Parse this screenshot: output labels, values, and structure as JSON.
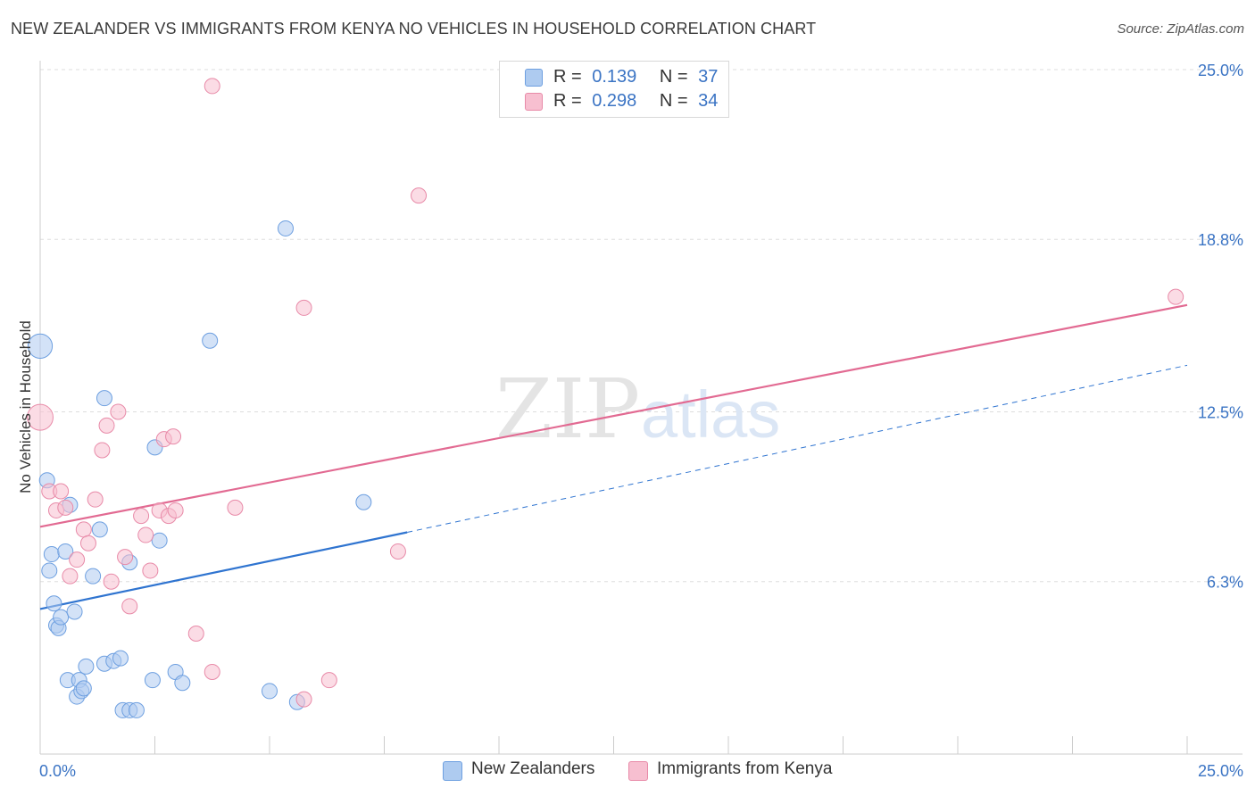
{
  "header": {
    "title": "NEW ZEALANDER VS IMMIGRANTS FROM KENYA NO VEHICLES IN HOUSEHOLD CORRELATION CHART",
    "source": "Source: ZipAtlas.com"
  },
  "watermark": {
    "zip": "ZIP",
    "atlas": "atlas"
  },
  "legend_top": [
    {
      "r_label": "R =",
      "r_value": "0.139",
      "n_label": "N =",
      "n_value": "37"
    },
    {
      "r_label": "R =",
      "r_value": "0.298",
      "n_label": "N =",
      "n_value": "34"
    }
  ],
  "colors": {
    "blue_fill": "#aecbf0",
    "blue_stroke": "#6d9fe0",
    "blue_line": "#2f74d0",
    "pink_fill": "#f7bfd0",
    "pink_stroke": "#e88aa8",
    "pink_line": "#e26a92",
    "tick_label": "#3b74c4",
    "grid": "#dddddd"
  },
  "chart_data": {
    "type": "scatter",
    "title": "NEW ZEALANDER VS IMMIGRANTS FROM KENYA NO VEHICLES IN HOUSEHOLD CORRELATION CHART",
    "xlabel": "",
    "ylabel": "No Vehicles in Household",
    "xlim": [
      0,
      25
    ],
    "ylim": [
      0,
      25
    ],
    "x_tick_labels": [
      "0.0%",
      "25.0%"
    ],
    "y_ticks": [
      6.3,
      12.5,
      18.8,
      25.0
    ],
    "y_tick_labels": [
      "6.3%",
      "12.5%",
      "18.8%",
      "25.0%"
    ],
    "grid": "horizontal dashed",
    "legend": "top-center and bottom",
    "series": [
      {
        "name": "New Zealanders",
        "color": "#aecbf0",
        "points": [
          [
            0.0,
            14.9,
            1.6
          ],
          [
            0.15,
            10.0,
            1
          ],
          [
            0.2,
            6.7,
            1
          ],
          [
            0.25,
            7.3,
            1
          ],
          [
            0.3,
            5.5,
            1
          ],
          [
            0.35,
            4.7,
            1
          ],
          [
            0.4,
            4.6,
            1
          ],
          [
            0.45,
            5.0,
            1
          ],
          [
            0.55,
            7.4,
            1
          ],
          [
            0.6,
            2.7,
            1
          ],
          [
            0.65,
            9.1,
            1
          ],
          [
            0.75,
            5.2,
            1
          ],
          [
            0.8,
            2.1,
            1
          ],
          [
            0.85,
            2.7,
            1
          ],
          [
            0.9,
            2.3,
            1
          ],
          [
            0.95,
            2.4,
            1
          ],
          [
            1.0,
            3.2,
            1
          ],
          [
            1.15,
            6.5,
            1
          ],
          [
            1.3,
            8.2,
            1
          ],
          [
            1.4,
            3.3,
            1
          ],
          [
            1.4,
            13.0,
            1
          ],
          [
            1.6,
            3.4,
            1
          ],
          [
            1.75,
            3.5,
            1
          ],
          [
            1.8,
            1.6,
            1
          ],
          [
            1.95,
            7.0,
            1
          ],
          [
            1.95,
            1.6,
            1
          ],
          [
            2.1,
            1.6,
            1
          ],
          [
            2.45,
            2.7,
            1
          ],
          [
            2.5,
            11.2,
            1
          ],
          [
            2.6,
            7.8,
            1
          ],
          [
            2.95,
            3.0,
            1
          ],
          [
            3.1,
            2.6,
            1
          ],
          [
            3.7,
            15.1,
            1
          ],
          [
            5.0,
            2.3,
            1
          ],
          [
            5.35,
            19.2,
            1
          ],
          [
            5.6,
            1.9,
            1
          ],
          [
            7.05,
            9.2,
            1
          ]
        ]
      },
      {
        "name": "Immigrants from Kenya",
        "color": "#f7bfd0",
        "points": [
          [
            0.0,
            12.3,
            1.7
          ],
          [
            0.2,
            9.6,
            1
          ],
          [
            0.35,
            8.9,
            1
          ],
          [
            0.45,
            9.6,
            1
          ],
          [
            0.55,
            9.0,
            1
          ],
          [
            0.65,
            6.5,
            1
          ],
          [
            0.8,
            7.1,
            1
          ],
          [
            0.95,
            8.2,
            1
          ],
          [
            1.05,
            7.7,
            1
          ],
          [
            1.2,
            9.3,
            1
          ],
          [
            1.35,
            11.1,
            1
          ],
          [
            1.45,
            12.0,
            1
          ],
          [
            1.55,
            6.3,
            1
          ],
          [
            1.7,
            12.5,
            1
          ],
          [
            1.85,
            7.2,
            1
          ],
          [
            1.95,
            5.4,
            1
          ],
          [
            2.2,
            8.7,
            1
          ],
          [
            2.3,
            8.0,
            1
          ],
          [
            2.4,
            6.7,
            1
          ],
          [
            2.6,
            8.9,
            1
          ],
          [
            2.7,
            11.5,
            1
          ],
          [
            2.8,
            8.7,
            1
          ],
          [
            2.9,
            11.6,
            1
          ],
          [
            2.95,
            8.9,
            1
          ],
          [
            3.4,
            4.4,
            1
          ],
          [
            3.75,
            3.0,
            1
          ],
          [
            3.75,
            24.4,
            1
          ],
          [
            4.25,
            9.0,
            1
          ],
          [
            5.75,
            16.3,
            1
          ],
          [
            5.75,
            2.0,
            1
          ],
          [
            6.3,
            2.7,
            1
          ],
          [
            7.8,
            7.4,
            1
          ],
          [
            8.25,
            20.4,
            1
          ],
          [
            24.75,
            16.7,
            1
          ]
        ]
      }
    ],
    "trend_lines": [
      {
        "series": "New Zealanders",
        "solid": [
          [
            0,
            5.3
          ],
          [
            8.0,
            8.1
          ]
        ],
        "dashed": [
          [
            8.0,
            8.1
          ],
          [
            25.0,
            14.2
          ]
        ]
      },
      {
        "series": "Immigrants from Kenya",
        "solid": [
          [
            0,
            8.3
          ],
          [
            25.0,
            16.4
          ]
        ]
      }
    ]
  },
  "bottom_legend": [
    {
      "label": "New Zealanders"
    },
    {
      "label": "Immigrants from Kenya"
    }
  ]
}
